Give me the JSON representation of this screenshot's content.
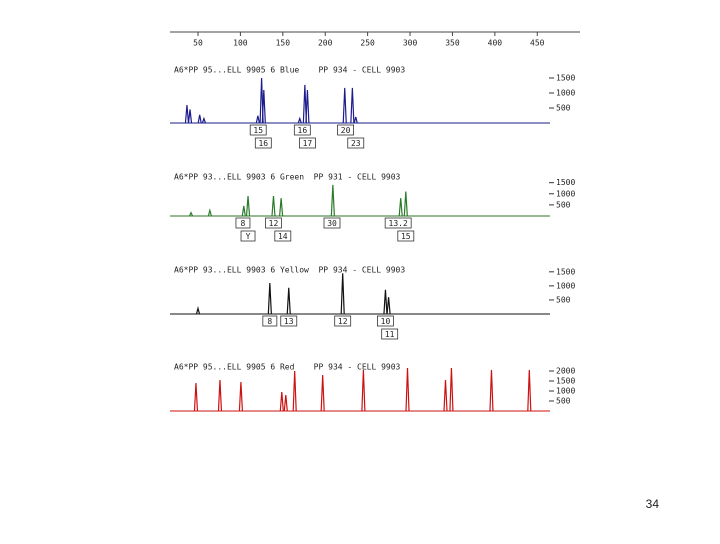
{
  "chart_data": [
    {
      "type": "peaks",
      "title": "A6*PP 95...ELL 9905 6 Blue    PP 934 - CELL 9903",
      "color": "#1c1c8e",
      "xlim": [
        17,
        465
      ],
      "xticks": [
        50,
        100,
        150,
        200,
        250,
        300,
        350,
        400,
        450
      ],
      "ylim": [
        0,
        1800
      ],
      "yticks": [
        500,
        1000,
        1500
      ],
      "x": [
        37,
        40.6,
        52,
        57,
        120.6,
        125,
        127.6,
        170,
        176,
        179,
        223,
        232,
        236
      ],
      "values": [
        600,
        450,
        270,
        150,
        240,
        1500,
        1100,
        150,
        1270,
        1100,
        1170,
        1170,
        200
      ],
      "alleles_top": [
        {
          "label": "15",
          "x": 121
        },
        {
          "label": "16",
          "x": 173
        },
        {
          "label": "20",
          "x": 224
        }
      ],
      "alleles_bottom": [
        {
          "label": "16",
          "x": 127
        },
        {
          "label": "17",
          "x": 179
        },
        {
          "label": "23",
          "x": 236
        }
      ]
    },
    {
      "type": "peaks",
      "title": "A6*PP 93...ELL 9903 6 Green  PP 931 - CELL 9903",
      "color": "#2a7a2a",
      "xlim": [
        17,
        465
      ],
      "ylim": [
        0,
        1800
      ],
      "yticks": [
        500,
        1000,
        1500
      ],
      "x": [
        41.8,
        64,
        104,
        109,
        139,
        148,
        209,
        289,
        295
      ],
      "values": [
        150,
        250,
        450,
        900,
        900,
        800,
        1400,
        800,
        1100
      ],
      "alleles_top": [
        {
          "label": "8",
          "x": 103
        },
        {
          "label": "12",
          "x": 139
        },
        {
          "label": "30",
          "x": 208
        },
        {
          "label": "13.2",
          "x": 286
        }
      ],
      "alleles_bottom": [
        {
          "label": "Y",
          "x": 109
        },
        {
          "label": "14",
          "x": 150
        },
        {
          "label": "15",
          "x": 295
        }
      ]
    },
    {
      "type": "peaks",
      "title": "A6*PP 93...ELL 9903 6 Yellow  PP 934 - CELL 9903",
      "color": "#111111",
      "xlim": [
        17,
        465
      ],
      "ylim": [
        0,
        1600
      ],
      "yticks": [
        500,
        1000,
        1500
      ],
      "x": [
        50,
        134.7,
        157,
        220.6,
        271,
        274.7
      ],
      "values": [
        200,
        1100,
        930,
        1450,
        860,
        600
      ],
      "alleles_top": [
        {
          "label": "8",
          "x": 134.7
        },
        {
          "label": "13",
          "x": 157
        },
        {
          "label": "12",
          "x": 220.6
        },
        {
          "label": "10",
          "x": 271
        }
      ],
      "alleles_bottom": [
        {
          "label": "11",
          "x": 276
        }
      ]
    },
    {
      "type": "peaks",
      "title": "A6*PP 95...ELL 9905 6 Red    PP 934 - CELL 9903",
      "color": "#cc1111",
      "xlim": [
        17,
        465
      ],
      "ylim": [
        0,
        2250
      ],
      "yticks": [
        500,
        1000,
        1500,
        2000
      ],
      "x": [
        47.6,
        75.9,
        100.6,
        148.8,
        153.5,
        164,
        197,
        245,
        297,
        341.8,
        348.8,
        396,
        440.6
      ],
      "values": [
        1400,
        1550,
        1450,
        950,
        800,
        2000,
        1800,
        2050,
        2150,
        1550,
        2150,
        2050,
        2050
      ],
      "alleles_top": [],
      "alleles_bottom": []
    }
  ],
  "page_number": "34"
}
